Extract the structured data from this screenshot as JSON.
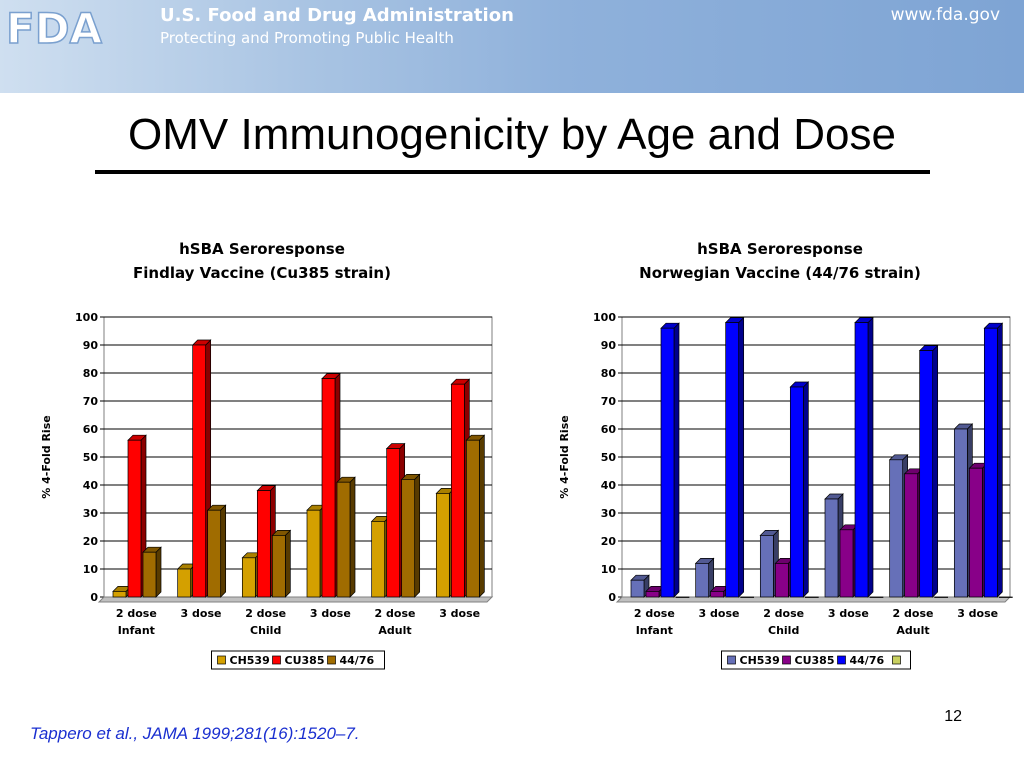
{
  "banner": {
    "logo": "FDA",
    "agency": "U.S. Food and Drug Administration",
    "tagline": "Protecting and Promoting Public Health",
    "site": "www.fda.gov"
  },
  "slide_title": "OMV Immunogenicity by Age and Dose",
  "page_number": "12",
  "citation": "Tappero et al., JAMA 1999;281(16):1520–7.",
  "chart_data": [
    {
      "type": "bar",
      "title": "hSBA Seroresponse",
      "subtitle": "Findlay Vaccine (Cu385 strain)",
      "ylabel": "% 4-Fold Rise",
      "xlabel": "",
      "ylim": [
        0,
        100
      ],
      "yticks": [
        0,
        10,
        20,
        30,
        40,
        50,
        60,
        70,
        80,
        90,
        100
      ],
      "categories": [
        "2 dose",
        "3 dose",
        "2 dose",
        "3 dose",
        "2 dose",
        "3 dose"
      ],
      "groups": [
        "Infant",
        "Child",
        "Adult"
      ],
      "grid": true,
      "three_d": true,
      "legend_position": "bottom",
      "series": [
        {
          "name": "CH539",
          "color": "#d4a000",
          "values": [
            2,
            10,
            14,
            31,
            27,
            37
          ]
        },
        {
          "name": "CU385",
          "color": "#ff0000",
          "values": [
            56,
            90,
            38,
            78,
            53,
            76
          ]
        },
        {
          "name": "44/76",
          "color": "#a06c00",
          "values": [
            16,
            31,
            22,
            41,
            42,
            56
          ]
        }
      ]
    },
    {
      "type": "bar",
      "title": "hSBA Seroresponse",
      "subtitle": "Norwegian Vaccine (44/76 strain)",
      "ylabel": "% 4-Fold Rise",
      "xlabel": "",
      "ylim": [
        0,
        100
      ],
      "yticks": [
        0,
        10,
        20,
        30,
        40,
        50,
        60,
        70,
        80,
        90,
        100
      ],
      "categories": [
        "2 dose",
        "3 dose",
        "2 dose",
        "3 dose",
        "2 dose",
        "3 dose"
      ],
      "groups": [
        "Infant",
        "Child",
        "Adult"
      ],
      "grid": true,
      "three_d": true,
      "legend_position": "bottom",
      "series": [
        {
          "name": "CH539",
          "color": "#6670b8",
          "values": [
            6,
            12,
            22,
            35,
            49,
            60
          ]
        },
        {
          "name": "CU385",
          "color": "#880088",
          "values": [
            2,
            2,
            12,
            24,
            44,
            46
          ]
        },
        {
          "name": "44/76",
          "color": "#0000ff",
          "values": [
            96,
            98,
            75,
            98,
            88,
            96
          ]
        },
        {
          "name": "",
          "color": "#c8d060",
          "values": [
            0,
            0,
            0,
            0,
            0,
            0
          ]
        }
      ]
    }
  ]
}
